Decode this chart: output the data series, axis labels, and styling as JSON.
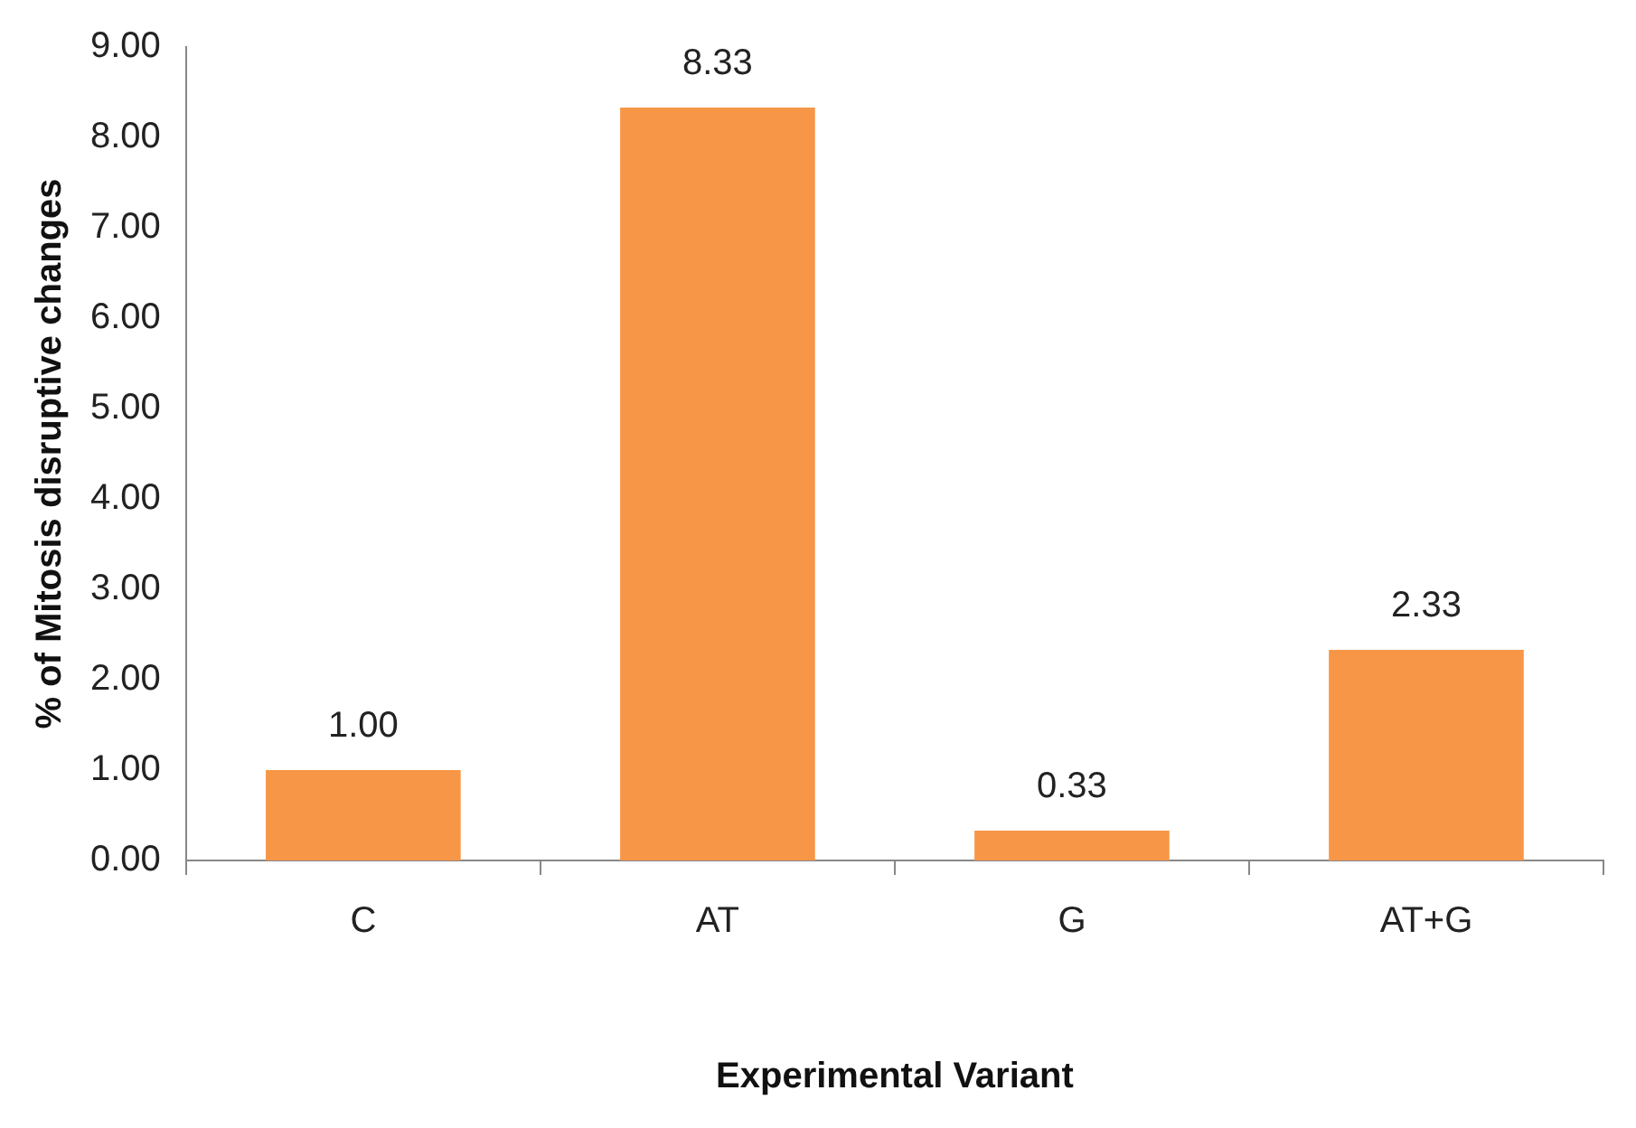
{
  "chart_data": {
    "type": "bar",
    "xlabel": "Experimental Variant",
    "ylabel": "% of Mitosis disruptive changes",
    "categories": [
      "C",
      "AT",
      "G",
      "AT+G"
    ],
    "values": [
      1.0,
      8.33,
      0.33,
      2.33
    ],
    "value_labels": [
      "1.00",
      "8.33",
      "0.33",
      "2.33"
    ],
    "color": "#f79646",
    "ylim": [
      0,
      9
    ],
    "yticks": [
      {
        "value": 0,
        "label": "0.00"
      },
      {
        "value": 1,
        "label": "1.00"
      },
      {
        "value": 2,
        "label": "2.00"
      },
      {
        "value": 3,
        "label": "3.00"
      },
      {
        "value": 4,
        "label": "4.00"
      },
      {
        "value": 5,
        "label": "5.00"
      },
      {
        "value": 6,
        "label": "6.00"
      },
      {
        "value": 7,
        "label": "7.00"
      },
      {
        "value": 8,
        "label": "8.00"
      },
      {
        "value": 9,
        "label": "9.00"
      }
    ],
    "grid": false,
    "legend": false
  }
}
